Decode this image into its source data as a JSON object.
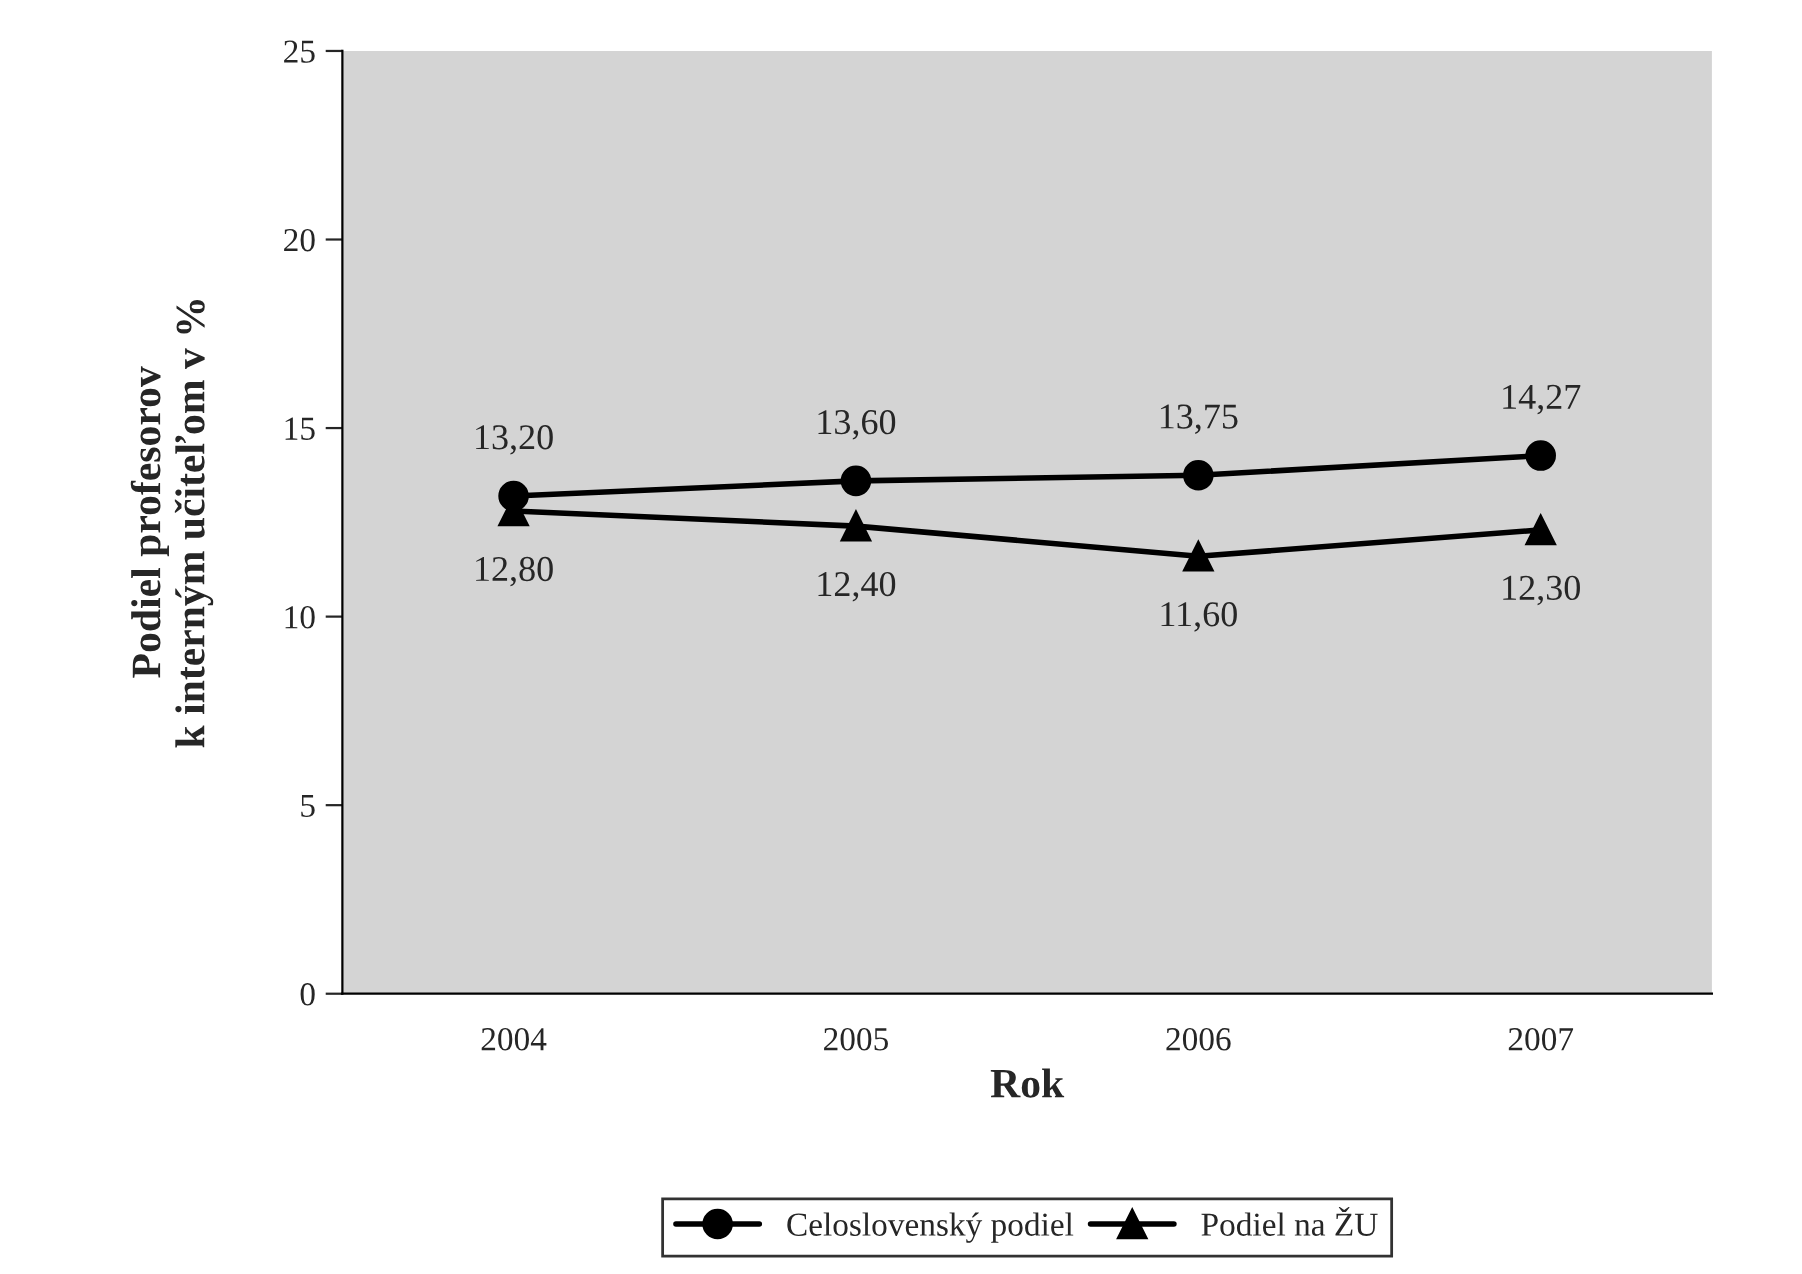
{
  "chart_data": {
    "type": "line",
    "xlabel": "Rok",
    "ylabel": "Podiel profesorov\nk interným učiteľom v %",
    "categories": [
      "2004",
      "2005",
      "2006",
      "2007"
    ],
    "series": [
      {
        "name": "Celoslovenský podiel",
        "color": "#000000",
        "marker": "circle",
        "values": [
          13.2,
          13.6,
          13.75,
          14.27
        ],
        "value_labels": [
          "13,20",
          "13,60",
          "13,75",
          "14,27"
        ]
      },
      {
        "name": "Podiel na ŽU",
        "color": "#000000",
        "marker": "triangle",
        "values": [
          12.8,
          12.4,
          11.6,
          12.3
        ],
        "value_labels": [
          "12,80",
          "12,40",
          "11,60",
          "12,30"
        ]
      }
    ],
    "ylim": [
      0,
      25
    ],
    "yticks": [
      0,
      5,
      10,
      15,
      20,
      25
    ],
    "grid": false,
    "legend": "bottom",
    "line_style": "solid"
  }
}
